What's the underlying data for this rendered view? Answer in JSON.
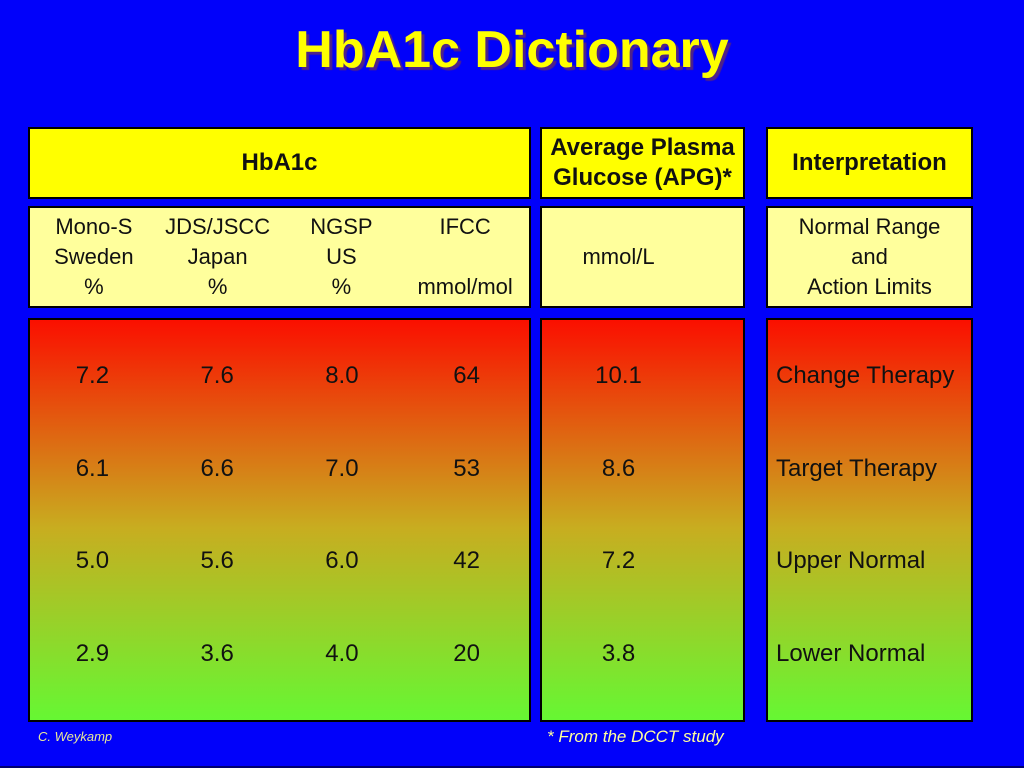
{
  "slide": {
    "title": "HbA1c Dictionary",
    "author": "C. Weykamp",
    "footnote": "* From the DCCT study"
  },
  "table": {
    "groups": [
      {
        "header": "HbA1c",
        "columns": [
          {
            "lines": [
              "Mono-S",
              "Sweden",
              "%"
            ]
          },
          {
            "lines": [
              "JDS/JSCC",
              "Japan",
              "%"
            ]
          },
          {
            "lines": [
              "NGSP",
              "US",
              "%"
            ]
          },
          {
            "lines": [
              "IFCC",
              "",
              "mmol/mol"
            ]
          }
        ]
      },
      {
        "header": "Average Plasma Glucose (APG)*",
        "subheader": "mmol/L"
      },
      {
        "header": "Interpretation",
        "subheader_lines": [
          "Normal Range",
          "and",
          "Action Limits"
        ]
      }
    ],
    "rows": [
      {
        "hba1c": [
          "7.2",
          "7.6",
          "8.0",
          "64"
        ],
        "apg": "10.1",
        "interpretation": "Change Therapy"
      },
      {
        "hba1c": [
          "6.1",
          "6.6",
          "7.0",
          "53"
        ],
        "apg": "8.6",
        "interpretation": "Target Therapy"
      },
      {
        "hba1c": [
          "5.0",
          "5.6",
          "6.0",
          "42"
        ],
        "apg": "7.2",
        "interpretation": "Upper Normal"
      },
      {
        "hba1c": [
          "2.9",
          "3.6",
          "4.0",
          "20"
        ],
        "apg": "3.8",
        "interpretation": "Lower Normal"
      }
    ]
  },
  "colors": {
    "background": "#0101fa",
    "title_text": "#ffff00",
    "header_fill": "#ffff00",
    "subheader_fill": "#ffff9c",
    "gradient_top": "#fb0f00",
    "gradient_middle": "#c8ad20",
    "gradient_bottom": "#66f733",
    "panel_border": "#000000",
    "footer_text": "#ffff9c"
  }
}
